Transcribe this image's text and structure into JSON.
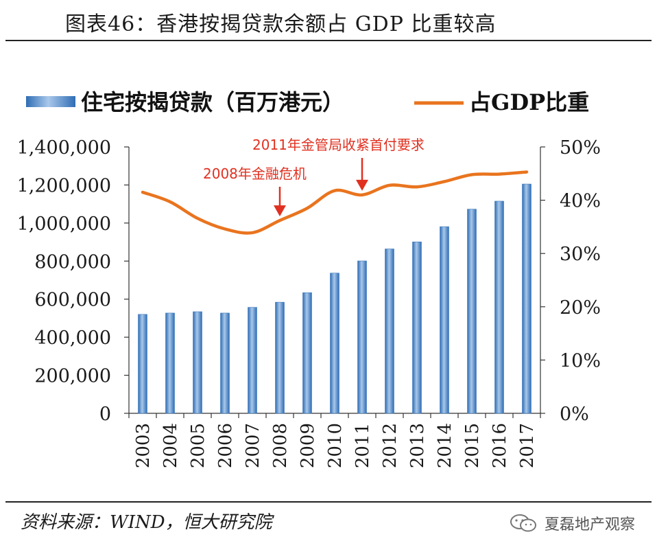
{
  "header": {
    "title": "图表46：香港按揭贷款余额占 GDP 比重较高"
  },
  "footer": {
    "source": "资料来源：WIND，恒大研究院",
    "watermark": "夏磊地产观察"
  },
  "colors": {
    "bar": "#4a86c8",
    "bar_light": "#a9c8ea",
    "line": "#e9741e",
    "annotation": "#e03020",
    "axis": "#333333"
  },
  "chart_data": {
    "type": "bar",
    "categories": [
      "2003",
      "2004",
      "2005",
      "2006",
      "2007",
      "2008",
      "2009",
      "2010",
      "2011",
      "2012",
      "2013",
      "2014",
      "2015",
      "2016",
      "2017"
    ],
    "series": [
      {
        "name": "住宅按揭贷款（百万港元）",
        "type": "bar",
        "axis": "left",
        "values": [
          520000,
          527000,
          534000,
          527000,
          557000,
          584000,
          634000,
          737000,
          801000,
          864000,
          901000,
          981000,
          1073000,
          1115000,
          1205000
        ]
      },
      {
        "name": "占GDP比重",
        "type": "line",
        "axis": "right",
        "values": [
          41.5,
          39.7,
          36.6,
          34.6,
          33.9,
          36.2,
          38.5,
          41.8,
          41.0,
          42.8,
          42.5,
          43.5,
          44.8,
          44.9,
          45.3
        ]
      }
    ],
    "y_left": {
      "lim": [
        0,
        1400000
      ],
      "ticks": [
        "0",
        "200,000",
        "400,000",
        "600,000",
        "800,000",
        "1,000,000",
        "1,200,000",
        "1,400,000"
      ]
    },
    "y_right": {
      "lim": [
        0,
        50
      ],
      "ticks": [
        "0%",
        "10%",
        "20%",
        "30%",
        "40%",
        "50%"
      ]
    },
    "annotations": [
      {
        "text": "2008年金融危机",
        "category": "2008"
      },
      {
        "text": "2011年金管局收紧首付要求",
        "category": "2011"
      }
    ],
    "legend_position": "top",
    "grid": false
  }
}
